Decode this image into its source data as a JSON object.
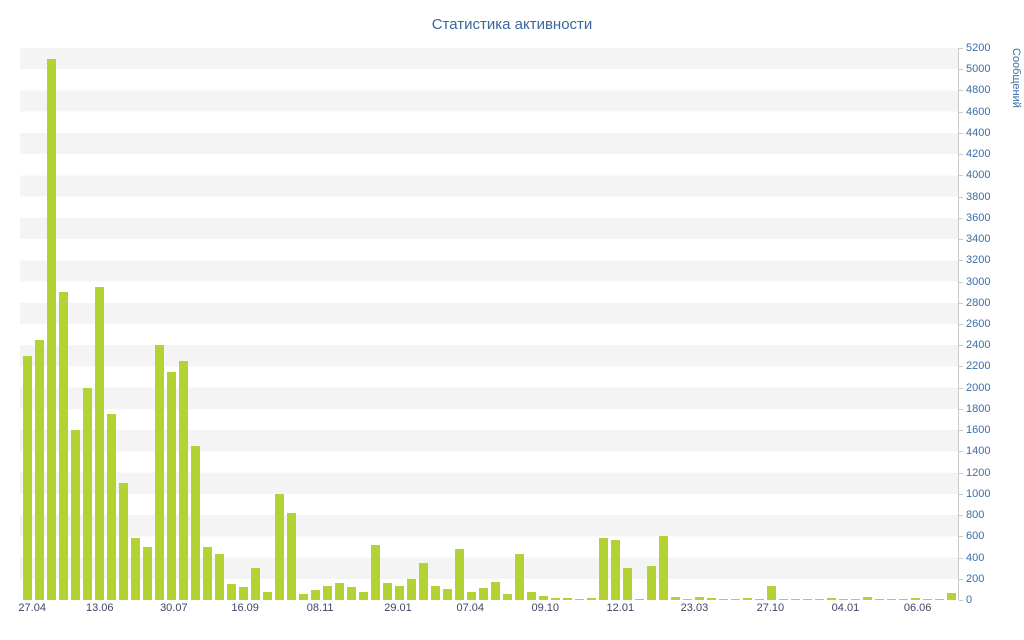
{
  "chart_data": {
    "type": "bar",
    "title": "Статистика активности",
    "ylabel": "Сообщений",
    "xlabel": "",
    "ylim": [
      0,
      5200
    ],
    "ytick_step": 200,
    "grid": "striped-horizontal-bands",
    "legend": "none",
    "y_axis_side": "right",
    "x_tick_labels": [
      {
        "label": "27.04",
        "pos_pct": 1.3
      },
      {
        "label": "13.06",
        "pos_pct": 8.5
      },
      {
        "label": "30.07",
        "pos_pct": 16.4
      },
      {
        "label": "16.09",
        "pos_pct": 24.0
      },
      {
        "label": "08.11",
        "pos_pct": 32.0
      },
      {
        "label": "29.01",
        "pos_pct": 40.3
      },
      {
        "label": "07.04",
        "pos_pct": 48.0
      },
      {
        "label": "09.10",
        "pos_pct": 56.0
      },
      {
        "label": "12.01",
        "pos_pct": 64.0
      },
      {
        "label": "23.03",
        "pos_pct": 71.9
      },
      {
        "label": "27.10",
        "pos_pct": 80.0
      },
      {
        "label": "04.01",
        "pos_pct": 88.0
      },
      {
        "label": "06.06",
        "pos_pct": 95.7
      }
    ],
    "values": [
      2300,
      2450,
      5100,
      2900,
      1600,
      2000,
      2950,
      1750,
      1100,
      580,
      500,
      2400,
      2150,
      2250,
      1450,
      500,
      430,
      150,
      120,
      300,
      80,
      1000,
      820,
      60,
      90,
      130,
      160,
      120,
      80,
      520,
      160,
      130,
      200,
      350,
      130,
      100,
      480,
      80,
      110,
      170,
      60,
      430,
      80,
      40,
      20,
      20,
      10,
      20,
      580,
      570,
      300,
      10,
      320,
      600,
      30,
      10,
      30,
      20,
      10,
      10,
      20,
      10,
      130,
      10,
      5,
      5,
      10,
      20,
      5,
      10,
      30,
      5,
      10,
      5,
      20,
      5,
      10,
      70
    ]
  },
  "colors": {
    "bar": "#b3d335",
    "title": "#3a679c",
    "y_tick_text": "#3a6ea5",
    "x_tick_text": "#3f4468",
    "axis_line": "#c9c9c9",
    "stripe_band": "#f4f4f4",
    "background": "#ffffff"
  }
}
